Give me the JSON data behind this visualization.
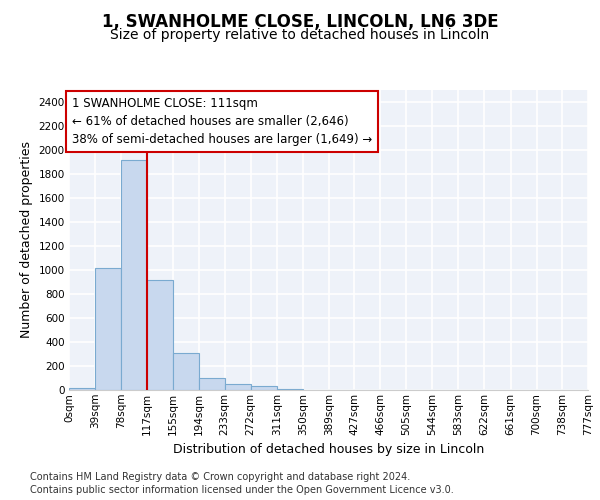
{
  "title": "1, SWANHOLME CLOSE, LINCOLN, LN6 3DE",
  "subtitle": "Size of property relative to detached houses in Lincoln",
  "xlabel": "Distribution of detached houses by size in Lincoln",
  "ylabel": "Number of detached properties",
  "bin_edges": [
    0,
    39,
    78,
    117,
    155,
    194,
    233,
    272,
    311,
    350,
    389,
    427,
    466,
    505,
    544,
    583,
    622,
    661,
    700,
    738,
    777
  ],
  "bin_counts": [
    20,
    1020,
    1920,
    920,
    310,
    100,
    50,
    30,
    5,
    3,
    2,
    0,
    0,
    0,
    0,
    0,
    0,
    0,
    0,
    0
  ],
  "bar_color": "#c8d8ee",
  "bar_edgecolor": "#7aaad0",
  "vline_x": 117,
  "vline_color": "#cc0000",
  "annotation_text": "1 SWANHOLME CLOSE: 111sqm\n← 61% of detached houses are smaller (2,646)\n38% of semi-detached houses are larger (1,649) →",
  "annotation_box_color": "#cc0000",
  "ylim": [
    0,
    2500
  ],
  "yticks": [
    0,
    200,
    400,
    600,
    800,
    1000,
    1200,
    1400,
    1600,
    1800,
    2000,
    2200,
    2400
  ],
  "xtick_labels": [
    "0sqm",
    "39sqm",
    "78sqm",
    "117sqm",
    "155sqm",
    "194sqm",
    "233sqm",
    "272sqm",
    "311sqm",
    "350sqm",
    "389sqm",
    "427sqm",
    "466sqm",
    "505sqm",
    "544sqm",
    "583sqm",
    "622sqm",
    "661sqm",
    "700sqm",
    "738sqm",
    "777sqm"
  ],
  "footer_line1": "Contains HM Land Registry data © Crown copyright and database right 2024.",
  "footer_line2": "Contains public sector information licensed under the Open Government Licence v3.0.",
  "background_color": "#eef2f9",
  "grid_color": "#ffffff",
  "title_fontsize": 12,
  "subtitle_fontsize": 10,
  "axis_label_fontsize": 9,
  "tick_fontsize": 7.5,
  "footer_fontsize": 7,
  "annot_fontsize": 8.5
}
